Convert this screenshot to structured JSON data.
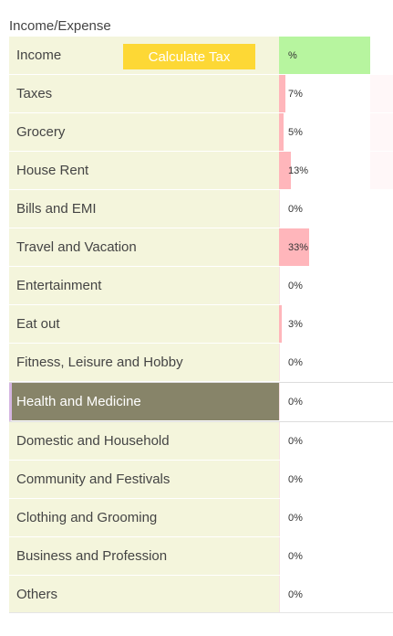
{
  "title": "Income/Expense",
  "calculate_tax_label": "Calculate Tax",
  "rows": [
    {
      "label": "Income",
      "pct": "%",
      "fraction": 1.0,
      "color": "#b7f59f"
    },
    {
      "label": "Taxes",
      "pct": "7%",
      "fraction": 0.07,
      "color": "#ffb6bb"
    },
    {
      "label": "Grocery",
      "pct": "5%",
      "fraction": 0.05,
      "color": "#ffb6bb"
    },
    {
      "label": "House Rent",
      "pct": "13%",
      "fraction": 0.13,
      "color": "#ffb6bb"
    },
    {
      "label": "Bills and EMI",
      "pct": "0%",
      "fraction": 0.0,
      "color": "#ffb6bb"
    },
    {
      "label": "Travel and Vacation",
      "pct": "33%",
      "fraction": 0.33,
      "color": "#ffb6bb"
    },
    {
      "label": "Entertainment",
      "pct": "0%",
      "fraction": 0.0,
      "color": "#ffb6bb"
    },
    {
      "label": "Eat out",
      "pct": "3%",
      "fraction": 0.03,
      "color": "#ffb6bb"
    },
    {
      "label": "Fitness, Leisure and Hobby",
      "pct": "0%",
      "fraction": 0.0,
      "color": "#ffb6bb"
    },
    {
      "label": "Health and Medicine",
      "pct": "0%",
      "fraction": 0.0,
      "color": "#ffb6bb",
      "selected": true
    },
    {
      "label": "Domestic and Household",
      "pct": "0%",
      "fraction": 0.0,
      "color": "#ffb6bb"
    },
    {
      "label": "Community and Festivals",
      "pct": "0%",
      "fraction": 0.0,
      "color": "#ffb6bb"
    },
    {
      "label": "Clothing and Grooming",
      "pct": "0%",
      "fraction": 0.0,
      "color": "#ffb6bb"
    },
    {
      "label": "Business and Profession",
      "pct": "0%",
      "fraction": 0.0,
      "color": "#ffb6bb"
    },
    {
      "label": "Others",
      "pct": "0%",
      "fraction": 0.0,
      "color": "#ffb6bb"
    }
  ]
}
